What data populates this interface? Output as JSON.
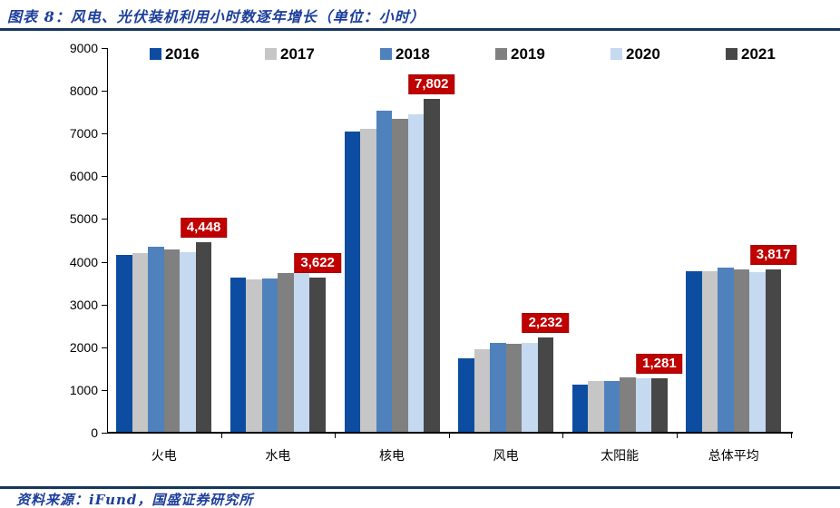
{
  "figure": {
    "title": "图表 8：风电、光伏装机利用小时数逐年增长（单位：小时）",
    "source": "资料来源：iFund，国盛证券研究所"
  },
  "colors": {
    "title_text": "#1C3E9B",
    "source_text": "#1C3E9B",
    "rule": "#17375E",
    "axis": "#000000",
    "label_bg": "#C00000",
    "label_text": "#FFFFFF"
  },
  "chart_data": {
    "type": "bar",
    "title": "图表 8：风电、光伏装机利用小时数逐年增长（单位：小时）",
    "unit": "小时",
    "categories": [
      "火电",
      "水电",
      "核电",
      "风电",
      "太阳能",
      "总体平均"
    ],
    "series": [
      {
        "name": "2016",
        "color": "#0D4DA1",
        "values": [
          4165,
          3621,
          7042,
          1742,
          1125,
          3785
        ]
      },
      {
        "name": "2017",
        "color": "#C6C6C6",
        "values": [
          4209,
          3579,
          7108,
          1948,
          1204,
          3786
        ]
      },
      {
        "name": "2018",
        "color": "#4F81BD",
        "values": [
          4361,
          3613,
          7544,
          2095,
          1212,
          3862
        ]
      },
      {
        "name": "2019",
        "color": "#808080",
        "values": [
          4293,
          3726,
          7346,
          2082,
          1285,
          3825
        ]
      },
      {
        "name": "2020",
        "color": "#C5D9F1",
        "values": [
          4216,
          3827,
          7453,
          2097,
          1281,
          3758
        ]
      },
      {
        "name": "2021",
        "color": "#474747",
        "values": [
          4448,
          3622,
          7802,
          2232,
          1281,
          3817
        ]
      }
    ],
    "ylim": [
      0,
      9000
    ],
    "ytick_step": 1000,
    "ytick_labels": [
      "0",
      "1000",
      "2000",
      "3000",
      "4000",
      "5000",
      "6000",
      "7000",
      "8000",
      "9000"
    ],
    "grid": false,
    "legend_position": "top",
    "data_labels": {
      "series": "2021",
      "values": [
        "4,448",
        "3,622",
        "7,802",
        "2,232",
        "1,281",
        "3,817"
      ]
    }
  }
}
